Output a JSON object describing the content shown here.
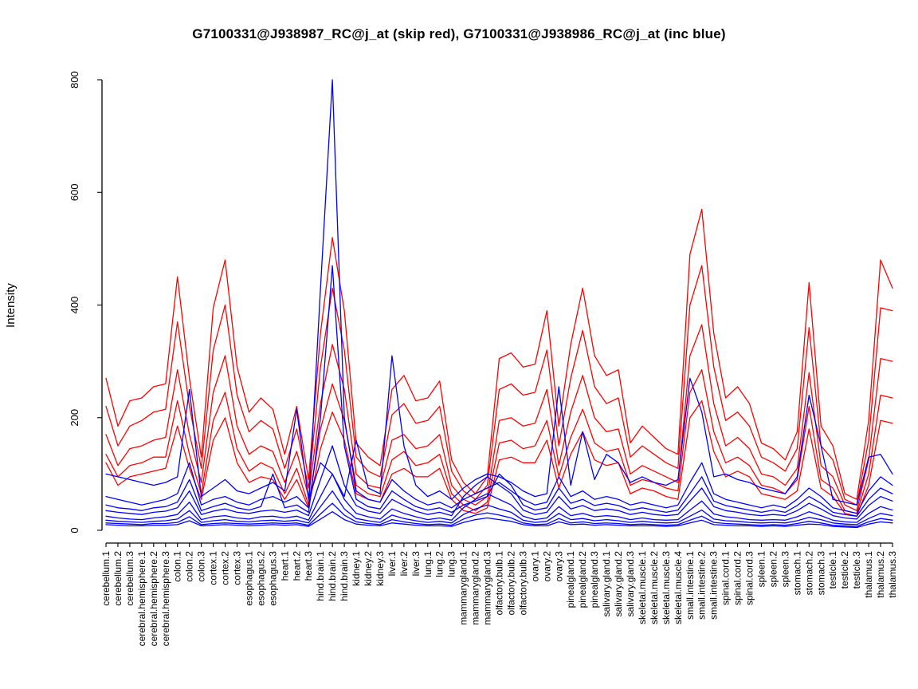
{
  "page": {
    "background": "#ffffff"
  },
  "chart_data": {
    "type": "line",
    "title": "G7100331@J938987_RC@j_at (skip red), G7100331@J938986_RC@j_at (inc blue)",
    "ylabel": "Intensity",
    "xlabel": "",
    "ylim": [
      0,
      800
    ],
    "yticks": [
      0,
      200,
      400,
      600,
      800
    ],
    "grid": false,
    "legend_position": "none",
    "colors": {
      "skip": "#ff0000",
      "inc": "#0000ff",
      "axis": "#000000"
    },
    "categories": [
      "cerebellum.1",
      "cerebellum.2",
      "cerebellum.3",
      "cerebral.hemisphere.1",
      "cerebral.hemisphere.2",
      "cerebral.hemisphere.3",
      "colon.1",
      "colon.2",
      "colon.3",
      "cortex.1",
      "cortex.2",
      "cortex.3",
      "esophagus.1",
      "esophagus.2",
      "esophagus.3",
      "heart.1",
      "heart.2",
      "heart.3",
      "hind.brain.1",
      "hind.brain.2",
      "hind.brain.3",
      "kidney.1",
      "kidney.2",
      "kidney.3",
      "liver.1",
      "liver.2",
      "liver.3",
      "lung.1",
      "lung.2",
      "lung.3",
      "mammarygland.1",
      "mammarygland.2",
      "mammarygland.3",
      "olfactory.bulb.1",
      "olfactory.bulb.2",
      "olfactory.bulb.3",
      "ovary.1",
      "ovary.2",
      "ovary.3",
      "pinealgland.1",
      "pinealgland.2",
      "pinealgland.3",
      "salivary.gland.1",
      "salivary.gland.2",
      "salivary.gland.3",
      "skeletal.muscle.1",
      "skeletal.muscle.2",
      "skeletal.muscle.3",
      "skeletal.muscle.4",
      "small.intestine.1",
      "small.intestine.2",
      "small.intestine.3",
      "spinal.cord.1",
      "spinal.cord.2",
      "spinal.cord.3",
      "spleen.1",
      "spleen.2",
      "spleen.3",
      "stomach.1",
      "stomach.2",
      "stomach.3",
      "testicle.1",
      "testicle.2",
      "testicle.3",
      "thalamus.1",
      "thalamus.2",
      "thalamus.3"
    ],
    "series": [
      {
        "name": "skip-1",
        "group": "skip",
        "color": "#ff0000",
        "values": [
          270,
          185,
          230,
          235,
          255,
          260,
          450,
          270,
          130,
          395,
          480,
          290,
          210,
          235,
          215,
          135,
          220,
          90,
          350,
          520,
          390,
          155,
          130,
          115,
          250,
          275,
          230,
          235,
          265,
          125,
          85,
          65,
          95,
          305,
          315,
          290,
          295,
          390,
          185,
          330,
          430,
          310,
          275,
          285,
          155,
          185,
          165,
          145,
          135,
          490,
          570,
          350,
          235,
          255,
          225,
          155,
          145,
          125,
          175,
          440,
          185,
          150,
          65,
          55,
          195,
          480,
          430
        ]
      },
      {
        "name": "skip-2",
        "group": "skip",
        "color": "#ff0000",
        "values": [
          220,
          150,
          185,
          195,
          210,
          215,
          370,
          220,
          110,
          320,
          400,
          240,
          175,
          195,
          180,
          110,
          180,
          75,
          290,
          430,
          320,
          130,
          105,
          95,
          205,
          225,
          190,
          195,
          220,
          105,
          70,
          55,
          80,
          250,
          260,
          240,
          245,
          320,
          150,
          270,
          355,
          255,
          225,
          235,
          130,
          150,
          135,
          120,
          110,
          400,
          470,
          290,
          195,
          210,
          185,
          130,
          120,
          105,
          145,
          360,
          150,
          125,
          55,
          45,
          160,
          395,
          390
        ]
      },
      {
        "name": "skip-3",
        "group": "skip",
        "color": "#ff0000",
        "values": [
          170,
          115,
          145,
          150,
          160,
          165,
          285,
          170,
          85,
          245,
          310,
          185,
          135,
          150,
          140,
          85,
          140,
          60,
          225,
          330,
          250,
          100,
          80,
          75,
          160,
          170,
          145,
          150,
          170,
          80,
          55,
          45,
          60,
          195,
          200,
          185,
          190,
          250,
          115,
          210,
          275,
          200,
          175,
          180,
          100,
          115,
          105,
          95,
          85,
          310,
          365,
          225,
          150,
          165,
          145,
          100,
          95,
          80,
          110,
          280,
          115,
          95,
          45,
          35,
          125,
          305,
          300
        ]
      },
      {
        "name": "skip-4",
        "group": "skip",
        "color": "#ff0000",
        "values": [
          135,
          95,
          115,
          120,
          130,
          130,
          230,
          135,
          65,
          195,
          245,
          145,
          105,
          120,
          110,
          65,
          110,
          45,
          180,
          260,
          195,
          80,
          65,
          60,
          125,
          140,
          115,
          120,
          135,
          65,
          45,
          35,
          50,
          155,
          160,
          145,
          150,
          195,
          95,
          165,
          215,
          155,
          140,
          145,
          80,
          90,
          85,
          75,
          70,
          245,
          285,
          175,
          120,
          130,
          115,
          80,
          75,
          65,
          90,
          220,
          90,
          75,
          35,
          30,
          100,
          240,
          235
        ]
      },
      {
        "name": "skip-5",
        "group": "skip",
        "color": "#ff0000",
        "values": [
          120,
          80,
          95,
          100,
          105,
          110,
          185,
          110,
          55,
          160,
          200,
          120,
          85,
          95,
          90,
          55,
          90,
          40,
          145,
          210,
          160,
          65,
          55,
          50,
          100,
          110,
          95,
          95,
          110,
          55,
          35,
          30,
          40,
          125,
          130,
          120,
          120,
          160,
          75,
          135,
          175,
          125,
          115,
          120,
          65,
          75,
          70,
          60,
          55,
          200,
          230,
          140,
          95,
          105,
          95,
          65,
          60,
          55,
          70,
          180,
          75,
          60,
          30,
          25,
          80,
          195,
          190
        ]
      },
      {
        "name": "inc-1",
        "group": "inc",
        "color": "#0000ff",
        "values": [
          100,
          95,
          90,
          85,
          80,
          85,
          95,
          250,
          60,
          75,
          90,
          70,
          65,
          75,
          85,
          70,
          215,
          55,
          120,
          100,
          60,
          160,
          75,
          65,
          310,
          150,
          80,
          60,
          70,
          55,
          75,
          90,
          100,
          95,
          85,
          70,
          60,
          65,
          255,
          80,
          175,
          90,
          135,
          120,
          85,
          95,
          85,
          80,
          90,
          270,
          210,
          95,
          100,
          90,
          85,
          75,
          70,
          65,
          95,
          240,
          150,
          55,
          50,
          45,
          130,
          135,
          100
        ]
      },
      {
        "name": "inc-2",
        "group": "inc",
        "color": "#0000ff",
        "values": [
          60,
          55,
          50,
          45,
          50,
          55,
          65,
          120,
          45,
          55,
          60,
          50,
          45,
          55,
          60,
          50,
          60,
          40,
          430,
          800,
          200,
          70,
          55,
          50,
          90,
          70,
          55,
          45,
          50,
          40,
          55,
          65,
          75,
          85,
          70,
          55,
          45,
          50,
          95,
          60,
          70,
          55,
          60,
          55,
          45,
          50,
          45,
          40,
          45,
          85,
          120,
          65,
          55,
          50,
          45,
          40,
          45,
          40,
          55,
          75,
          60,
          40,
          35,
          30,
          70,
          95,
          80
        ]
      },
      {
        "name": "inc-3",
        "group": "inc",
        "color": "#0000ff",
        "values": [
          45,
          40,
          38,
          35,
          40,
          42,
          50,
          90,
          35,
          42,
          48,
          40,
          36,
          42,
          100,
          40,
          45,
          32,
          200,
          470,
          150,
          55,
          42,
          38,
          70,
          55,
          42,
          36,
          40,
          32,
          45,
          52,
          60,
          100,
          80,
          45,
          36,
          40,
          75,
          48,
          55,
          44,
          48,
          44,
          36,
          40,
          36,
          32,
          36,
          65,
          95,
          52,
          44,
          40,
          36,
          32,
          36,
          32,
          44,
          60,
          48,
          32,
          28,
          25,
          55,
          75,
          65
        ]
      },
      {
        "name": "inc-4",
        "group": "inc",
        "color": "#0000ff",
        "values": [
          35,
          32,
          30,
          28,
          32,
          34,
          40,
          70,
          28,
          34,
          38,
          32,
          30,
          34,
          36,
          32,
          36,
          26,
          90,
          150,
          80,
          44,
          34,
          30,
          55,
          44,
          34,
          28,
          32,
          26,
          60,
          80,
          95,
          80,
          65,
          36,
          28,
          32,
          60,
          38,
          44,
          35,
          38,
          35,
          28,
          32,
          28,
          26,
          28,
          52,
          75,
          42,
          35,
          32,
          28,
          26,
          28,
          26,
          35,
          48,
          38,
          26,
          22,
          20,
          44,
          60,
          52
        ]
      },
      {
        "name": "inc-5",
        "group": "inc",
        "color": "#0000ff",
        "values": [
          25,
          22,
          20,
          19,
          22,
          24,
          28,
          50,
          19,
          24,
          26,
          22,
          20,
          24,
          25,
          22,
          25,
          18,
          60,
          100,
          55,
          30,
          24,
          20,
          38,
          30,
          24,
          19,
          22,
          18,
          40,
          55,
          65,
          55,
          45,
          25,
          19,
          22,
          42,
          26,
          30,
          24,
          26,
          24,
          19,
          22,
          19,
          18,
          19,
          36,
          52,
          29,
          24,
          22,
          19,
          18,
          19,
          18,
          24,
          33,
          26,
          18,
          15,
          14,
          30,
          42,
          36
        ]
      },
      {
        "name": "inc-6",
        "group": "inc",
        "color": "#0000ff",
        "values": [
          18,
          16,
          15,
          14,
          16,
          17,
          20,
          35,
          14,
          17,
          19,
          16,
          15,
          17,
          18,
          16,
          18,
          13,
          42,
          70,
          38,
          21,
          17,
          14,
          27,
          21,
          17,
          14,
          16,
          13,
          28,
          38,
          45,
          38,
          32,
          18,
          14,
          16,
          30,
          19,
          21,
          17,
          19,
          17,
          14,
          16,
          14,
          13,
          14,
          25,
          36,
          20,
          17,
          16,
          14,
          13,
          14,
          13,
          17,
          23,
          19,
          13,
          11,
          10,
          21,
          30,
          26
        ]
      },
      {
        "name": "inc-7",
        "group": "inc",
        "color": "#0000ff",
        "values": [
          13,
          12,
          11,
          10,
          12,
          12,
          14,
          24,
          10,
          12,
          13,
          12,
          11,
          12,
          13,
          12,
          13,
          9,
          29,
          48,
          27,
          15,
          12,
          10,
          19,
          15,
          12,
          10,
          11,
          9,
          20,
          27,
          31,
          27,
          22,
          13,
          10,
          11,
          21,
          13,
          15,
          12,
          13,
          12,
          10,
          11,
          10,
          9,
          10,
          18,
          25,
          14,
          12,
          11,
          10,
          9,
          10,
          9,
          12,
          16,
          13,
          9,
          8,
          7,
          15,
          21,
          18
        ]
      },
      {
        "name": "inc-8",
        "group": "inc",
        "color": "#0000ff",
        "values": [
          10,
          9,
          8,
          8,
          9,
          9,
          10,
          17,
          8,
          9,
          10,
          9,
          8,
          9,
          10,
          9,
          10,
          7,
          20,
          33,
          19,
          11,
          9,
          8,
          13,
          11,
          9,
          8,
          8,
          7,
          14,
          19,
          22,
          19,
          16,
          10,
          8,
          8,
          15,
          10,
          11,
          9,
          10,
          9,
          8,
          8,
          8,
          7,
          8,
          13,
          18,
          10,
          9,
          8,
          8,
          7,
          8,
          7,
          9,
          11,
          10,
          7,
          6,
          5,
          11,
          15,
          13
        ]
      }
    ]
  }
}
